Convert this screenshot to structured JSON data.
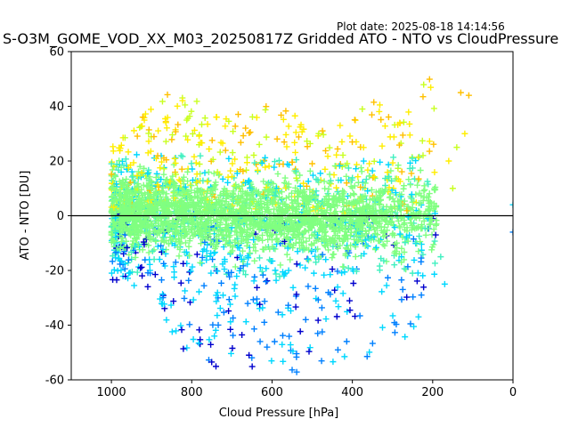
{
  "plot_date": "Plot date: 2025-08-18 14:14:56",
  "chart_data": {
    "type": "scatter",
    "title": "S-O3M_GOME_VOD_XX_M03_20250817Z Gridded ATO - NTO vs CloudPressure",
    "xlabel": "Cloud Pressure [hPa]",
    "ylabel": "ATO - NTO [DU]",
    "xlim": [
      1100,
      0
    ],
    "ylim": [
      -60,
      60
    ],
    "x_ticks": [
      1000,
      800,
      600,
      400,
      200,
      0
    ],
    "y_ticks": [
      -60,
      -40,
      -20,
      0,
      20,
      40,
      60
    ],
    "x_axis_inverted": true,
    "reference_line_y": 0,
    "marker": "plus",
    "colormap": "jet (point color encodes density)",
    "color_levels": [
      "#0000cd",
      "#0080ff",
      "#00d8ff",
      "#40f0c0",
      "#80ff80",
      "#c8ff20",
      "#ffee00",
      "#ffc000"
    ],
    "grid": false,
    "series": [
      {
        "x": [
          950,
          900,
          850,
          800,
          750,
          700,
          650,
          600,
          550,
          500,
          450,
          400,
          350,
          300,
          250,
          200,
          150,
          110,
          0
        ],
        "y_mean": [
          1,
          1,
          1,
          1,
          0,
          0,
          0,
          0,
          -1,
          -1,
          -1,
          -1,
          0,
          0,
          0,
          0,
          2,
          30,
          0
        ],
        "y_upper_envelope": [
          30,
          42,
          48,
          45,
          38,
          35,
          42,
          40,
          38,
          30,
          32,
          40,
          42,
          38,
          42,
          53,
          45,
          45,
          5
        ],
        "y_lower_envelope": [
          -25,
          -30,
          -45,
          -55,
          -57,
          -58,
          -57,
          -57,
          -58,
          -56,
          -55,
          -56,
          -50,
          -48,
          -45,
          -20,
          -25,
          -10,
          -6
        ]
      }
    ]
  }
}
